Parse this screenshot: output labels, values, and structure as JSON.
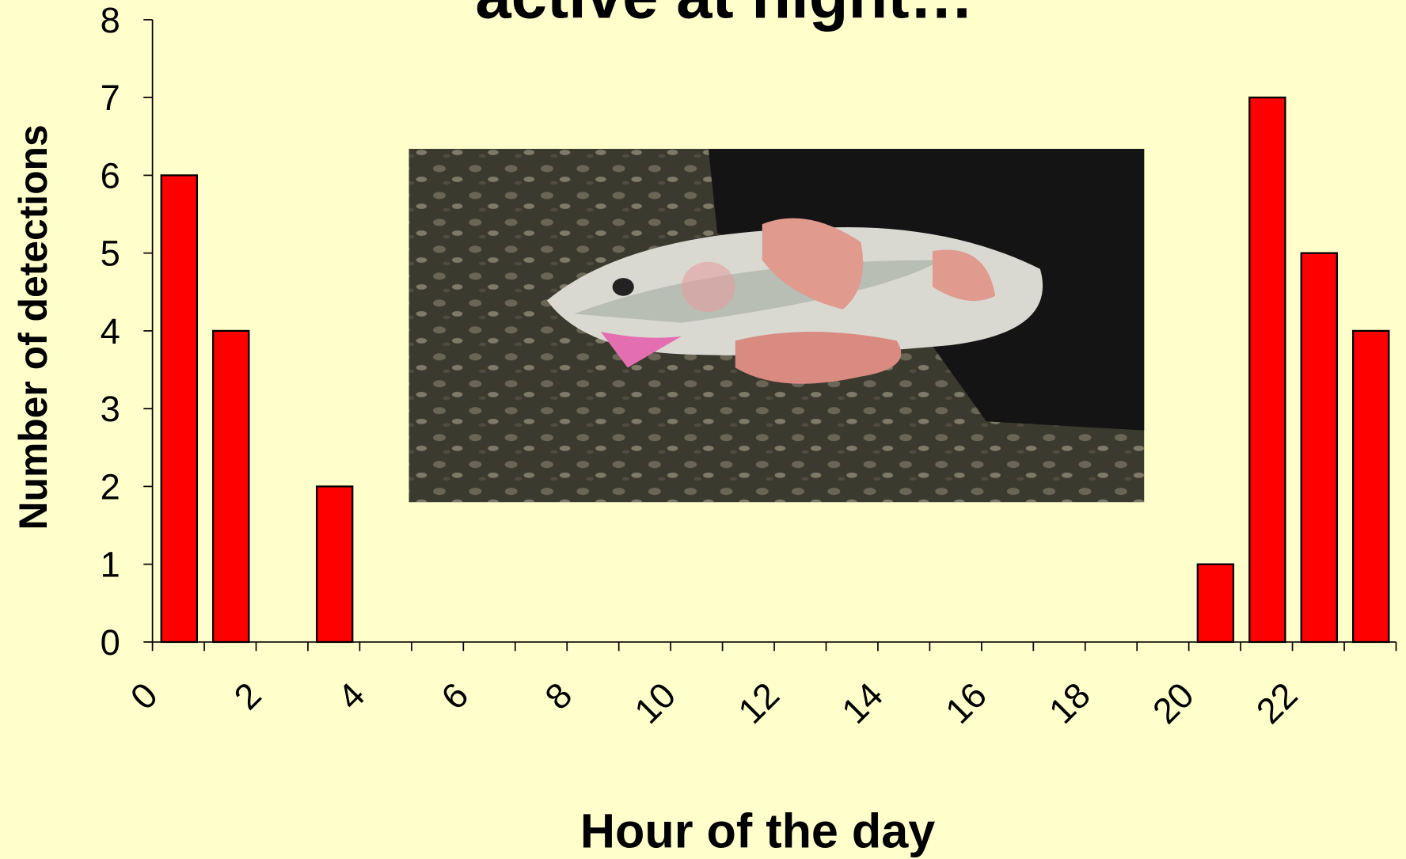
{
  "chart_data": {
    "type": "histogram",
    "title": "active at night…",
    "xlabel": "Hour of the day",
    "ylabel": "Number of detections",
    "bins": [
      0,
      1,
      2,
      3,
      4,
      5,
      6,
      7,
      8,
      9,
      10,
      11,
      12,
      13,
      14,
      15,
      16,
      17,
      18,
      19,
      20,
      21,
      22,
      23,
      24
    ],
    "values": [
      6,
      4,
      0,
      2,
      0,
      0,
      0,
      0,
      0,
      0,
      0,
      0,
      0,
      0,
      0,
      0,
      0,
      0,
      0,
      0,
      1,
      7,
      5,
      4
    ],
    "color": "#ff0000",
    "xlim": [
      0,
      24
    ],
    "xticks": [
      0,
      2,
      4,
      6,
      8,
      10,
      12,
      14,
      16,
      18,
      20,
      22
    ],
    "ylim": [
      0,
      8
    ],
    "yticks": [
      0,
      1,
      2,
      3,
      4,
      5,
      6,
      7,
      8
    ]
  }
}
